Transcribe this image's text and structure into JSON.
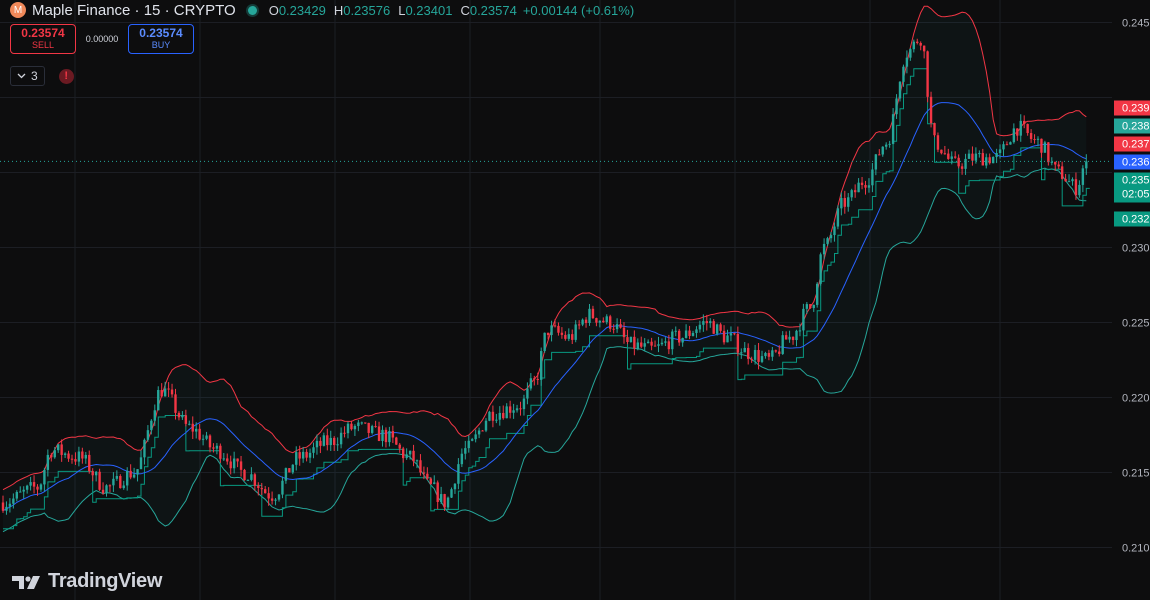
{
  "header": {
    "logo_letter": "M",
    "symbol_title": "Maple Finance · 15 · CRYPTO",
    "ohlc": [
      {
        "key": "O",
        "value": "0.23429"
      },
      {
        "key": "H",
        "value": "0.23576"
      },
      {
        "key": "L",
        "value": "0.23401"
      },
      {
        "key": "C",
        "value": "0.23574"
      }
    ],
    "change": "+0.00144 (+0.61%)"
  },
  "trade": {
    "sell_price": "0.23574",
    "sell_label": "SELL",
    "spread": "0.00000",
    "buy_price": "0.23574",
    "buy_label": "BUY"
  },
  "indicators": {
    "count": "3",
    "alert_glyph": "!"
  },
  "brand": {
    "name": "TradingView"
  },
  "colors": {
    "up": "#26a69a",
    "down": "#f23645",
    "basis": "#2962ff",
    "upper_band": "#f23645",
    "lower_band": "#26a69a",
    "stop_line": "#089981"
  },
  "chart_data": {
    "type": "candlestick",
    "interval": "15",
    "y_range": [
      0.2065,
      0.2465
    ],
    "y_ticks": [
      {
        "value": 0.245,
        "label": "0.245"
      },
      {
        "value": 0.23,
        "label": "0.230"
      },
      {
        "value": 0.225,
        "label": "0.225"
      },
      {
        "value": 0.22,
        "label": "0.220"
      },
      {
        "value": 0.215,
        "label": "0.215"
      },
      {
        "value": 0.21,
        "label": "0.210"
      }
    ],
    "price_labels": [
      {
        "value": 0.2393,
        "label": "0.239",
        "color": "#f23645"
      },
      {
        "value": 0.2381,
        "label": "0.238",
        "color": "#26a69a"
      },
      {
        "value": 0.2369,
        "label": "0.237",
        "color": "#f23645"
      },
      {
        "value": 0.2357,
        "label": "0.236",
        "color": "#2962ff"
      },
      {
        "value": 0.2345,
        "label": "0.235",
        "color": "#089981",
        "sub": "02:05"
      },
      {
        "value": 0.2319,
        "label": "0.232",
        "color": "#089981"
      }
    ],
    "last_price": 0.23574,
    "price_waypoints": [
      [
        0,
        0.213
      ],
      [
        10,
        0.214
      ],
      [
        14,
        0.2165
      ],
      [
        22,
        0.216
      ],
      [
        30,
        0.214
      ],
      [
        38,
        0.215
      ],
      [
        46,
        0.2205
      ],
      [
        54,
        0.218
      ],
      [
        62,
        0.2165
      ],
      [
        70,
        0.215
      ],
      [
        78,
        0.2135
      ],
      [
        86,
        0.216
      ],
      [
        94,
        0.217
      ],
      [
        102,
        0.218
      ],
      [
        110,
        0.2175
      ],
      [
        118,
        0.216
      ],
      [
        124,
        0.214
      ],
      [
        128,
        0.213
      ],
      [
        134,
        0.2165
      ],
      [
        142,
        0.219
      ],
      [
        150,
        0.2195
      ],
      [
        154,
        0.221
      ],
      [
        158,
        0.2245
      ],
      [
        164,
        0.224
      ],
      [
        170,
        0.2255
      ],
      [
        176,
        0.225
      ],
      [
        182,
        0.2235
      ],
      [
        188,
        0.2232
      ],
      [
        196,
        0.224
      ],
      [
        204,
        0.225
      ],
      [
        210,
        0.224
      ],
      [
        216,
        0.223
      ],
      [
        222,
        0.2225
      ],
      [
        228,
        0.224
      ],
      [
        234,
        0.226
      ],
      [
        238,
        0.23
      ],
      [
        244,
        0.233
      ],
      [
        250,
        0.2345
      ],
      [
        256,
        0.237
      ],
      [
        262,
        0.243
      ],
      [
        266,
        0.244
      ],
      [
        270,
        0.237
      ],
      [
        276,
        0.2355
      ],
      [
        282,
        0.236
      ],
      [
        288,
        0.236
      ],
      [
        294,
        0.238
      ],
      [
        300,
        0.237
      ],
      [
        306,
        0.235
      ],
      [
        311,
        0.234
      ],
      [
        314,
        0.2357
      ]
    ],
    "bollinger_period": 20,
    "bollinger_mult": 2
  }
}
